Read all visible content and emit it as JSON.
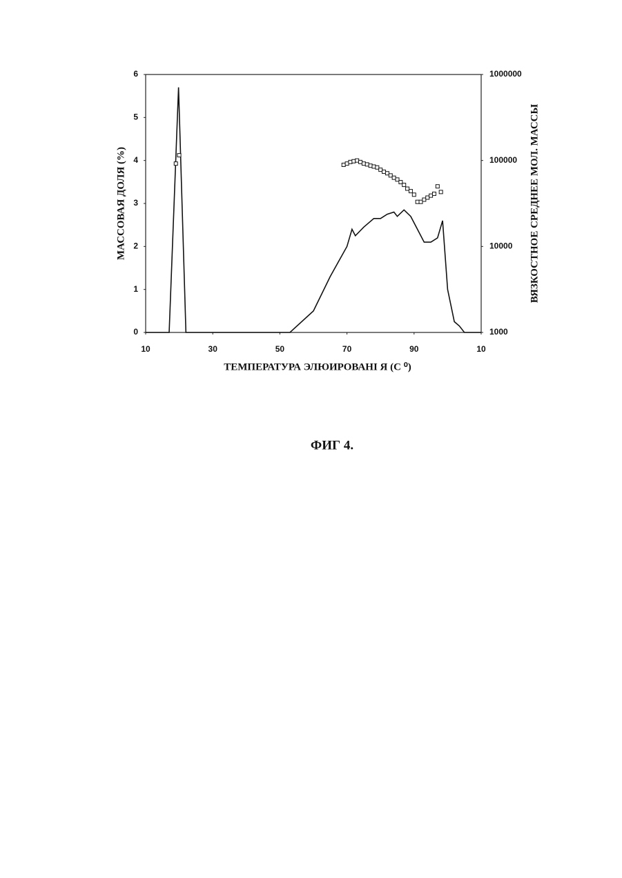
{
  "chart_data": {
    "type": "line",
    "x_label": "ТЕМПЕРАТУРА ЭЛЮИРОВАНI Я (С ⁰)",
    "y_label": "МАССОВАЯ ДОЛЯ (%)",
    "y2_label": "ВЯЗКОСТНОЕ СРЕДНЕЕ МОЛ. МАССЫ",
    "xlim": [
      10,
      110
    ],
    "xticks": [
      10,
      30,
      50,
      70,
      90,
      {
        "value": 110,
        "label": "10"
      }
    ],
    "ylim": [
      0,
      6
    ],
    "yticks": [
      0,
      1,
      2,
      3,
      4,
      5,
      6
    ],
    "y2lim": [
      1000,
      1000000
    ],
    "y2ticks": [
      1000,
      10000,
      100000,
      1000000
    ],
    "y2scale": "log",
    "grid": false,
    "series": [
      {
        "type": "line",
        "color": "#111",
        "x": [
          10,
          17,
          19.8,
          22,
          53,
          60,
          65,
          70,
          71.5,
          72.5,
          75,
          78,
          80,
          82,
          84,
          85,
          87,
          89,
          91,
          93,
          95,
          97,
          98.5,
          100,
          102,
          103.5,
          105,
          110
        ],
        "values": [
          0,
          0,
          5.7,
          0,
          0,
          0.5,
          1.3,
          2.0,
          2.4,
          2.25,
          2.45,
          2.65,
          2.65,
          2.75,
          2.8,
          2.7,
          2.85,
          2.7,
          2.4,
          2.1,
          2.1,
          2.2,
          2.6,
          1.0,
          0.25,
          0.15,
          0,
          0
        ]
      },
      {
        "type": "scatter",
        "color": "#111",
        "axis": "y2",
        "x": [
          19,
          20,
          69,
          70,
          71,
          72,
          73,
          74,
          75,
          76,
          77,
          78,
          79,
          80,
          81,
          82,
          83,
          84,
          85,
          86,
          87,
          88,
          89,
          90,
          91,
          92,
          93,
          94,
          95,
          96,
          97,
          98
        ],
        "values": [
          92000,
          115000,
          89000,
          92000,
          96000,
          98000,
          100000,
          96000,
          92000,
          90000,
          87000,
          85000,
          83000,
          78000,
          74000,
          71000,
          67000,
          63000,
          60000,
          56000,
          52000,
          47000,
          44000,
          40000,
          33000,
          33000,
          35000,
          37000,
          39000,
          41000,
          50000,
          43000
        ]
      }
    ]
  },
  "caption": "ФИГ 4."
}
